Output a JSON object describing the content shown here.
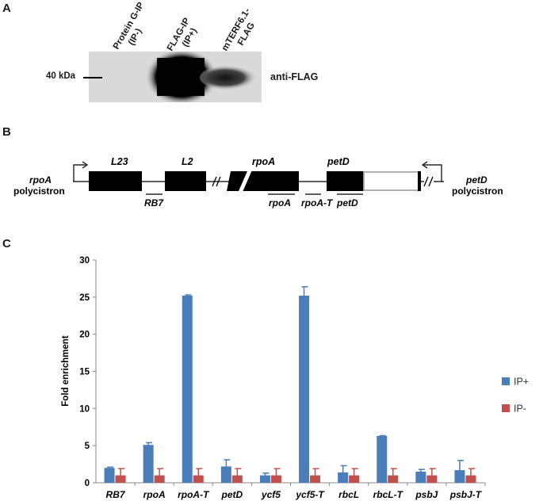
{
  "panelA": {
    "letter": "A",
    "lanes": [
      {
        "line1": "Protein G-IP",
        "line2": "(IP-)"
      },
      {
        "line1": "FLAG-IP",
        "line2": "(IP+)"
      },
      {
        "line1": "mTERF6.1-",
        "line2": "FLAG"
      }
    ],
    "marker_label": "40 kDa",
    "antibody_label": "anti-FLAG"
  },
  "panelB": {
    "letter": "B",
    "left_label": {
      "line1": "rpoA",
      "line2": "polycistron"
    },
    "right_label": {
      "line1": "petD",
      "line2": "polycistron"
    },
    "genes": [
      "L23",
      "L2",
      "rpoA",
      "petD"
    ],
    "probes": [
      "RB7",
      "rpoA",
      "rpoA-T",
      "petD"
    ]
  },
  "panelC": {
    "letter": "C",
    "chart_data": {
      "type": "bar",
      "ylabel": "Fold enrichment",
      "ylim": [
        0,
        30
      ],
      "yticks": [
        0,
        5,
        10,
        15,
        20,
        25,
        30
      ],
      "categories": [
        "RB7",
        "rpoA",
        "rpoA-T",
        "petD",
        "ycf5",
        "ycf5-T",
        "rbcL",
        "rbcL-T",
        "psbJ",
        "psbJ-T"
      ],
      "series": [
        {
          "name": "IP+",
          "color": "#4a7ebb",
          "values": [
            2.0,
            5.1,
            25.2,
            2.2,
            1.0,
            25.2,
            1.4,
            6.3,
            1.5,
            1.7
          ],
          "errors": [
            0.1,
            0.3,
            0.1,
            0.9,
            0.3,
            1.2,
            0.9,
            0.05,
            0.3,
            1.3
          ]
        },
        {
          "name": "IP-",
          "color": "#c0504d",
          "values": [
            1.0,
            1.0,
            1.0,
            1.0,
            1.0,
            1.0,
            1.0,
            1.0,
            1.0,
            1.0
          ],
          "errors": [
            0.9,
            0.9,
            0.9,
            0.9,
            0.9,
            0.9,
            0.9,
            0.9,
            0.9,
            0.9
          ]
        }
      ],
      "legend_position": "right"
    }
  }
}
